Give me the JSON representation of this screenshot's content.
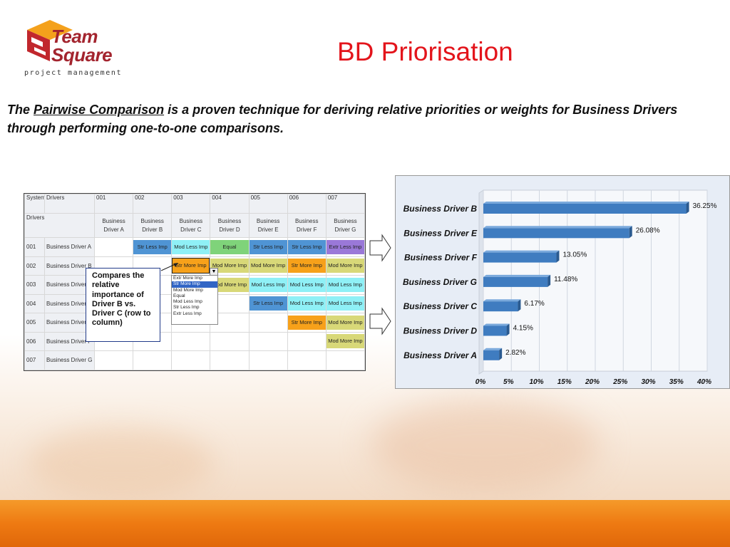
{
  "logo": {
    "line1": "Team",
    "line2": "Square",
    "tagline": "project management"
  },
  "title": "BD Priorisation",
  "intro": {
    "pre": "The ",
    "link": "Pairwise Comparison",
    "post": " is a proven technique for deriving relative priorities or weights for Business Drivers through performing one-to-one comparisons."
  },
  "matrix": {
    "corner": "Systemic",
    "corner2": "Drivers",
    "corner3": "Drivers",
    "col_ids": [
      "001",
      "002",
      "003",
      "004",
      "005",
      "006",
      "007"
    ],
    "col_names": [
      "Business Driver A",
      "Business Driver B",
      "Business Driver C",
      "Business Driver D",
      "Business Driver E",
      "Business Driver F",
      "Business Driver G"
    ],
    "rows": [
      {
        "id": "001",
        "name": "Business Driver A",
        "cells": [
          "",
          "Str Less Imp",
          "Mod Less Imp",
          "Equal",
          "Str Less Imp",
          "Str Less Imp",
          "Extr Less Imp"
        ]
      },
      {
        "id": "002",
        "name": "Business Driver B",
        "cells": [
          "",
          "",
          "Str More Imp",
          "Mod More Imp",
          "Mod More Imp",
          "Str More Imp",
          "Mod More Imp"
        ]
      },
      {
        "id": "003",
        "name": "Business Driver C",
        "cells": [
          "",
          "",
          "",
          "Mod More Imp",
          "Mod Less Imp",
          "Mod Less Imp",
          "Mod Less Imp"
        ]
      },
      {
        "id": "004",
        "name": "Business Driver D",
        "cells": [
          "",
          "",
          "",
          "",
          "Str Less Imp",
          "Mod Less Imp",
          "Mod Less Imp"
        ]
      },
      {
        "id": "005",
        "name": "Business Driver E",
        "cells": [
          "",
          "",
          "",
          "",
          "",
          "Str More Imp",
          "Mod More Imp"
        ]
      },
      {
        "id": "006",
        "name": "Business Driver F",
        "cells": [
          "",
          "",
          "",
          "",
          "",
          "",
          "Mod More Imp"
        ]
      },
      {
        "id": "007",
        "name": "Business Driver G",
        "cells": [
          "",
          "",
          "",
          "",
          "",
          "",
          ""
        ]
      }
    ],
    "dropdown_options": [
      "Extr More Imp",
      "Str More Imp",
      "Mod More Imp",
      "Equal",
      "Mod Less Imp",
      "Str Less Imp",
      "Extr Less Imp"
    ],
    "dropdown_selected": "Str More Imp"
  },
  "callout": "Compares the relative importance of Driver B vs. Driver C (row to column)",
  "chart_data": {
    "type": "bar",
    "orientation": "horizontal",
    "categories": [
      "Business Driver B",
      "Business Driver E",
      "Business Driver F",
      "Business Driver G",
      "Business Driver C",
      "Business Driver D",
      "Business Driver A"
    ],
    "values": [
      36.25,
      26.08,
      13.05,
      11.48,
      6.17,
      4.15,
      2.82
    ],
    "value_labels": [
      "36.25%",
      "26.08%",
      "13.05%",
      "11.48%",
      "6.17%",
      "4.15%",
      "2.82%"
    ],
    "xlim": [
      0,
      40
    ],
    "xticks": [
      "0%",
      "5%",
      "10%",
      "15%",
      "20%",
      "25%",
      "30%",
      "35%",
      "40%"
    ],
    "grid": true,
    "bar_color": "#3f7cc0"
  }
}
